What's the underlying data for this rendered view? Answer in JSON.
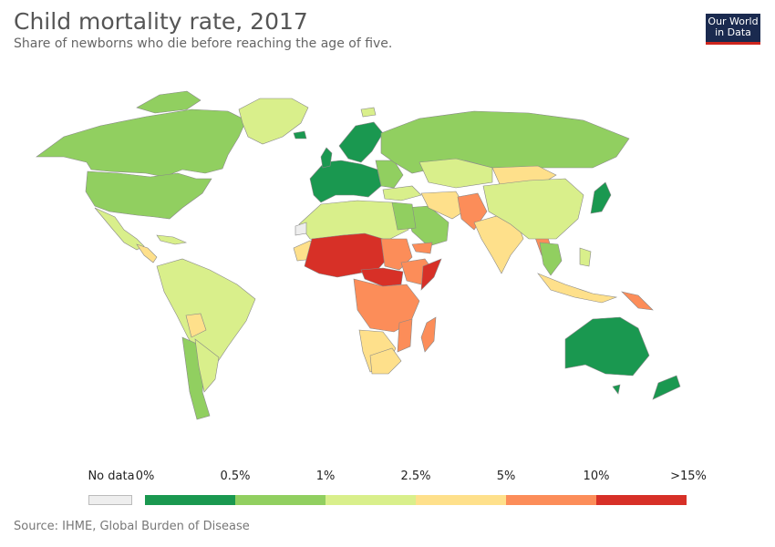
{
  "header": {
    "title": "Child mortality rate, 2017",
    "subtitle": "Share of newborns who die before reaching the age of five.",
    "logo_line1": "Our World",
    "logo_line2": "in Data"
  },
  "legend": {
    "no_data_label": "No data",
    "no_data_color": "#eeeeee",
    "bins": [
      {
        "label": "0%",
        "color": "#1a9850"
      },
      {
        "label": "0.5%",
        "color": "#91cf60"
      },
      {
        "label": "1%",
        "color": "#d9ef8b"
      },
      {
        "label": "2.5%",
        "color": "#fee08b"
      },
      {
        "label": "5%",
        "color": "#fc8d59"
      },
      {
        "label": "10%",
        "color": "#d73027"
      }
    ],
    "end_label": ">15%"
  },
  "source": "Source: IHME, Global Burden of Disease",
  "colors": {
    "ocean": "#ffffff",
    "border": "#999999"
  }
}
